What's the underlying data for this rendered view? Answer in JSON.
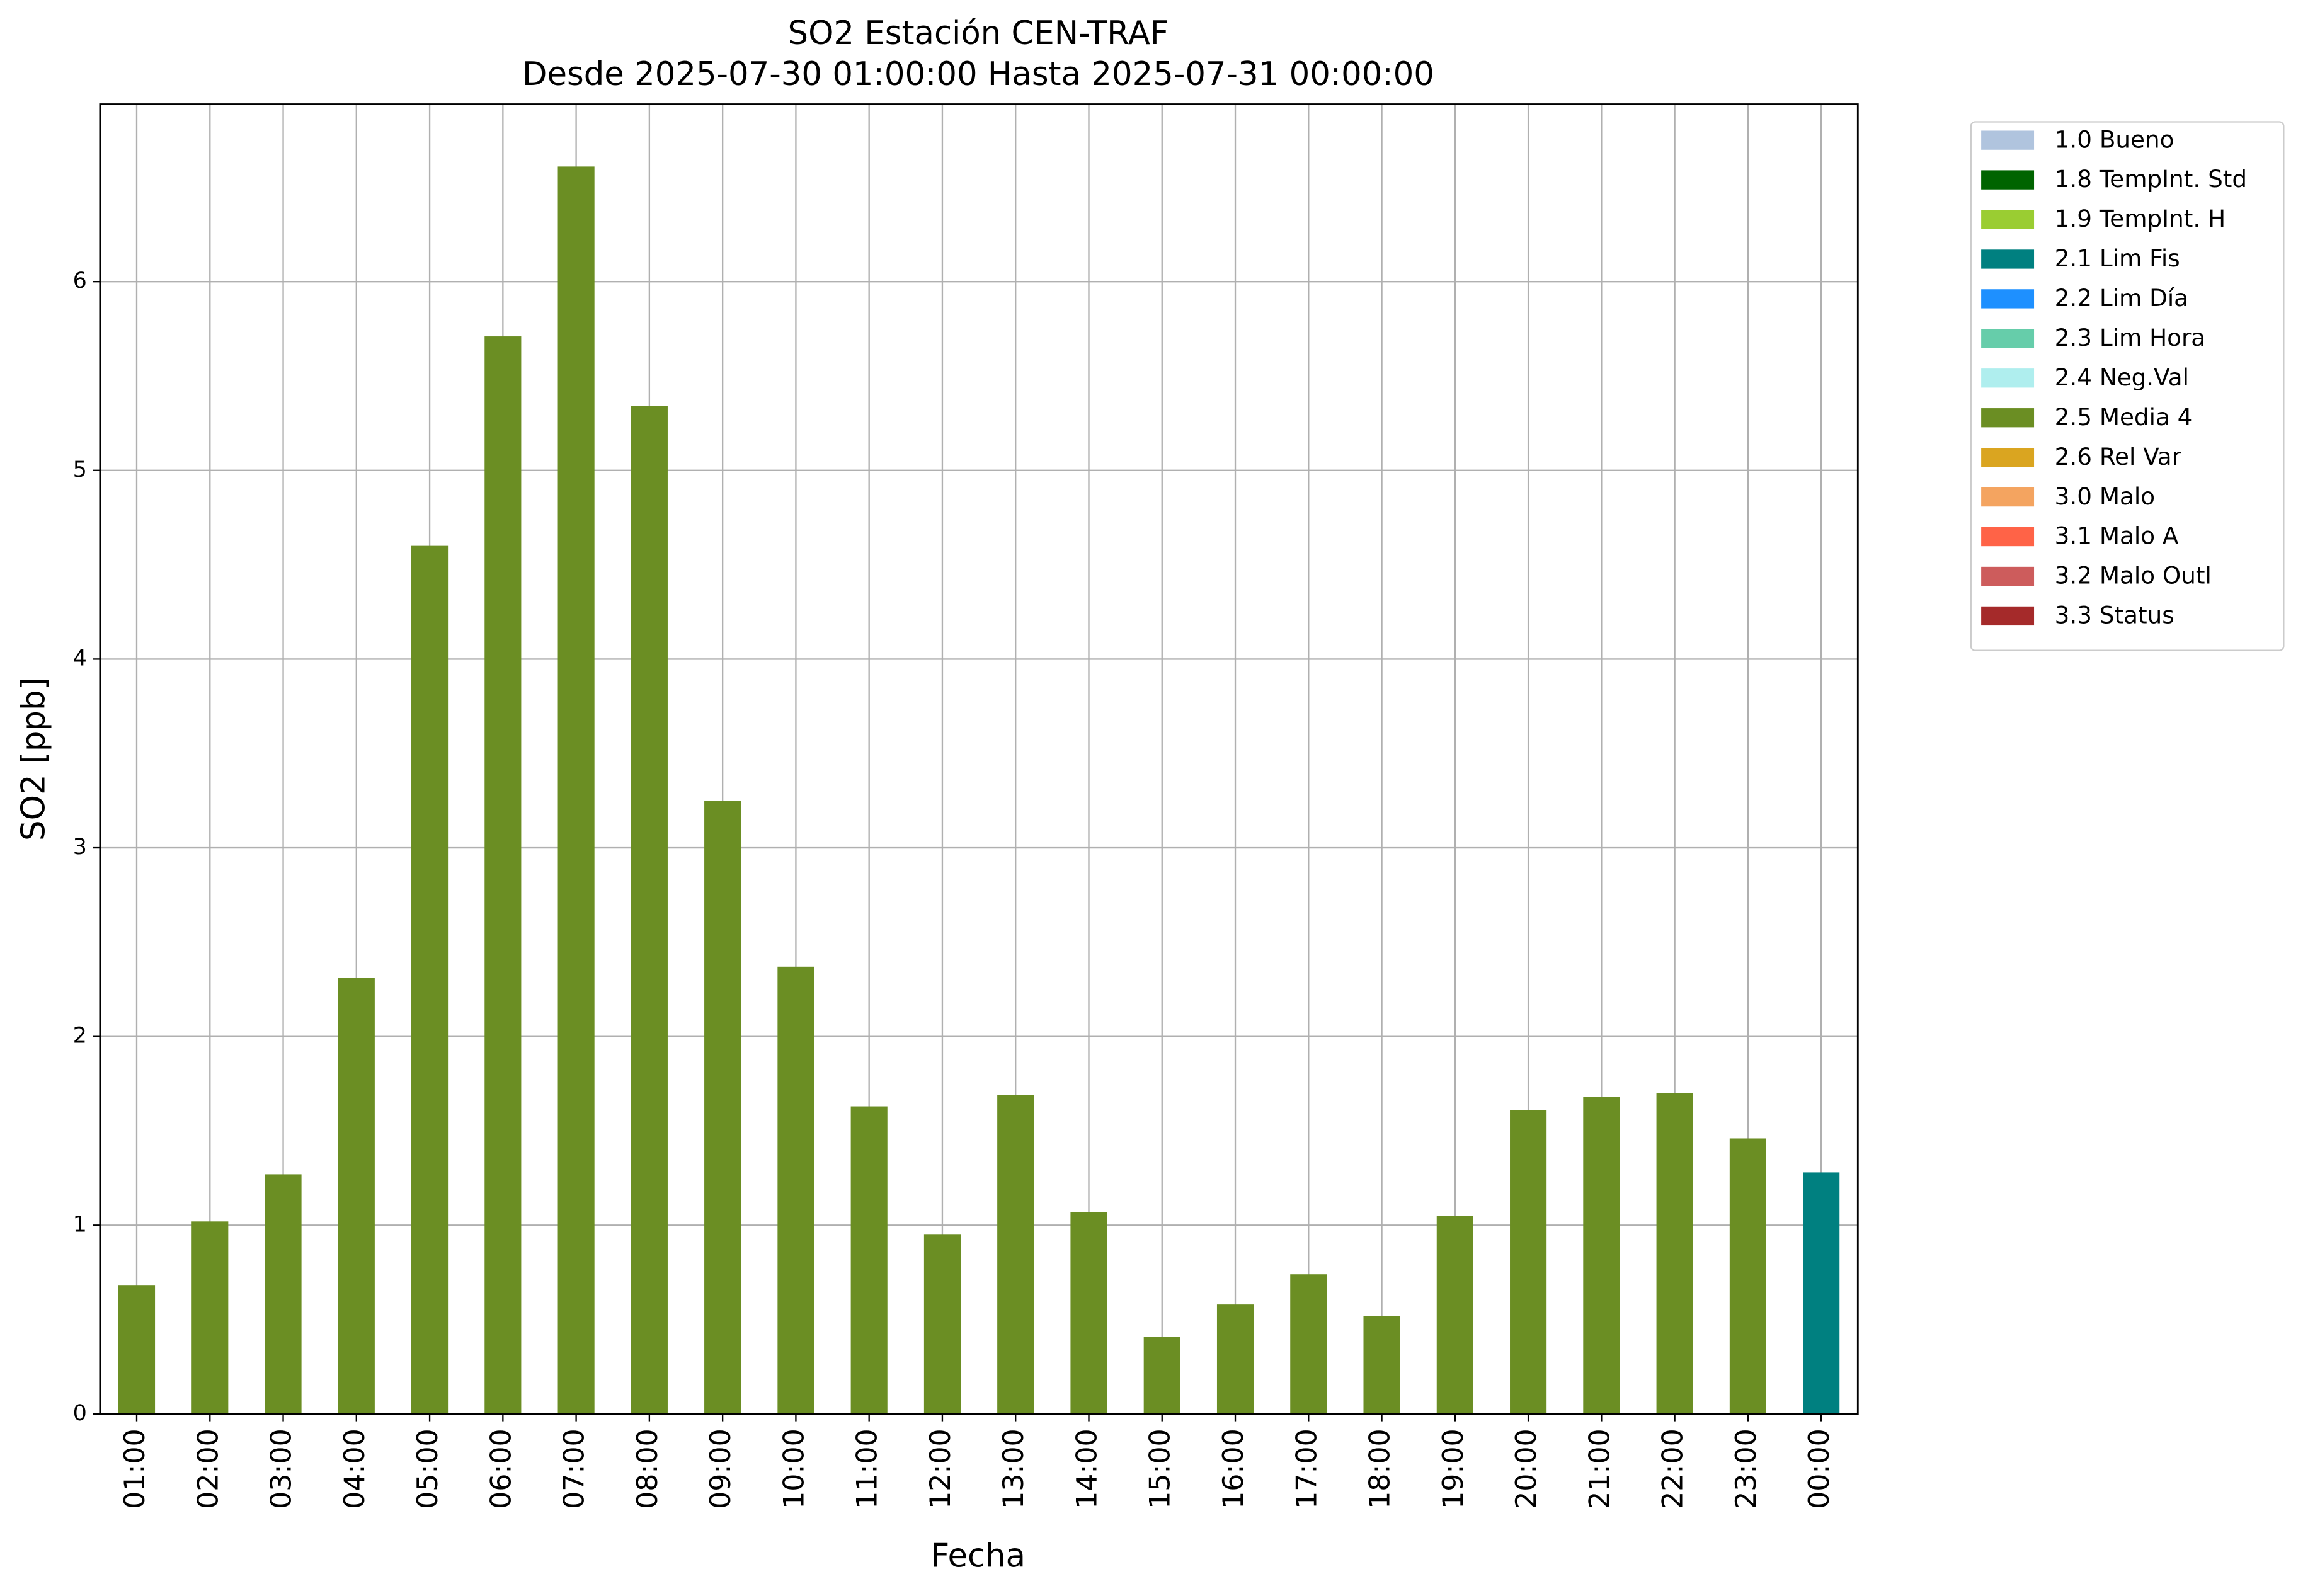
{
  "chart_data": {
    "type": "bar",
    "stacked": true,
    "title": "SO2 Estación CEN-TRAF",
    "subtitle": "Desde 2025-07-30 01:00:00 Hasta 2025-07-31 00:00:00",
    "x_label": "Fecha",
    "y_label": "SO2 [ppb]",
    "categories": [
      "01:00",
      "02:00",
      "03:00",
      "04:00",
      "05:00",
      "06:00",
      "07:00",
      "08:00",
      "09:00",
      "10:00",
      "11:00",
      "12:00",
      "13:00",
      "14:00",
      "15:00",
      "16:00",
      "17:00",
      "18:00",
      "19:00",
      "20:00",
      "21:00",
      "22:00",
      "23:00",
      "00:00"
    ],
    "series": [
      {
        "name": "1.0 Bueno",
        "color": "#b0c4de",
        "values": [
          null,
          null,
          null,
          null,
          null,
          null,
          null,
          null,
          null,
          null,
          null,
          null,
          null,
          null,
          null,
          null,
          null,
          null,
          null,
          null,
          null,
          null,
          null,
          null
        ]
      },
      {
        "name": "1.8 TempInt. Std",
        "color": "#006400",
        "values": [
          null,
          null,
          null,
          null,
          null,
          null,
          null,
          null,
          null,
          null,
          null,
          null,
          null,
          null,
          null,
          null,
          null,
          null,
          null,
          null,
          null,
          null,
          null,
          null
        ]
      },
      {
        "name": "1.9 TempInt. H",
        "color": "#9acd32",
        "values": [
          null,
          null,
          null,
          null,
          null,
          null,
          null,
          null,
          null,
          null,
          null,
          null,
          null,
          null,
          null,
          null,
          null,
          null,
          null,
          null,
          null,
          null,
          null,
          null
        ]
      },
      {
        "name": "2.1 Lim Fis",
        "color": "#008080",
        "values": [
          null,
          null,
          null,
          null,
          null,
          null,
          null,
          null,
          null,
          null,
          null,
          null,
          null,
          null,
          null,
          null,
          null,
          null,
          null,
          null,
          null,
          null,
          null,
          1.28
        ]
      },
      {
        "name": "2.2 Lim Día",
        "color": "#1e90ff",
        "values": [
          null,
          null,
          null,
          null,
          null,
          null,
          null,
          null,
          null,
          null,
          null,
          null,
          null,
          null,
          null,
          null,
          null,
          null,
          null,
          null,
          null,
          null,
          null,
          null
        ]
      },
      {
        "name": "2.3 Lim Hora",
        "color": "#66cdaa",
        "values": [
          null,
          null,
          null,
          null,
          null,
          null,
          null,
          null,
          null,
          null,
          null,
          null,
          null,
          null,
          null,
          null,
          null,
          null,
          null,
          null,
          null,
          null,
          null,
          null
        ]
      },
      {
        "name": "2.4 Neg.Val",
        "color": "#afeeee",
        "values": [
          null,
          null,
          null,
          null,
          null,
          null,
          null,
          null,
          null,
          null,
          null,
          null,
          null,
          null,
          null,
          null,
          null,
          null,
          null,
          null,
          null,
          null,
          null,
          null
        ]
      },
      {
        "name": "2.5 Media 4",
        "color": "#6b8e23",
        "values": [
          0.68,
          1.02,
          1.27,
          2.31,
          4.6,
          5.71,
          6.61,
          5.34,
          3.25,
          2.37,
          1.63,
          0.95,
          1.69,
          1.07,
          0.41,
          0.58,
          0.74,
          0.52,
          1.05,
          1.61,
          1.68,
          1.7,
          1.46,
          null
        ]
      },
      {
        "name": "2.6 Rel Var",
        "color": "#daa520",
        "values": [
          null,
          null,
          null,
          null,
          null,
          null,
          null,
          null,
          null,
          null,
          null,
          null,
          null,
          null,
          null,
          null,
          null,
          null,
          null,
          null,
          null,
          null,
          null,
          null
        ]
      },
      {
        "name": "3.0 Malo",
        "color": "#f4a460",
        "values": [
          null,
          null,
          null,
          null,
          null,
          null,
          null,
          null,
          null,
          null,
          null,
          null,
          null,
          null,
          null,
          null,
          null,
          null,
          null,
          null,
          null,
          null,
          null,
          null
        ]
      },
      {
        "name": "3.1 Malo A",
        "color": "#ff6347",
        "values": [
          null,
          null,
          null,
          null,
          null,
          null,
          null,
          null,
          null,
          null,
          null,
          null,
          null,
          null,
          null,
          null,
          null,
          null,
          null,
          null,
          null,
          null,
          null,
          null
        ]
      },
      {
        "name": "3.2 Malo Outl",
        "color": "#cd5c5c",
        "values": [
          null,
          null,
          null,
          null,
          null,
          null,
          null,
          null,
          null,
          null,
          null,
          null,
          null,
          null,
          null,
          null,
          null,
          null,
          null,
          null,
          null,
          null,
          null,
          null
        ]
      },
      {
        "name": "3.3 Status",
        "color": "#a52a2a",
        "values": [
          null,
          null,
          null,
          null,
          null,
          null,
          null,
          null,
          null,
          null,
          null,
          null,
          null,
          null,
          null,
          null,
          null,
          null,
          null,
          null,
          null,
          null,
          null,
          null
        ]
      }
    ],
    "ylim": [
      0,
      6.94
    ],
    "yticks": [
      0,
      1,
      2,
      3,
      4,
      5,
      6
    ],
    "grid": true,
    "legend": "outside right"
  }
}
